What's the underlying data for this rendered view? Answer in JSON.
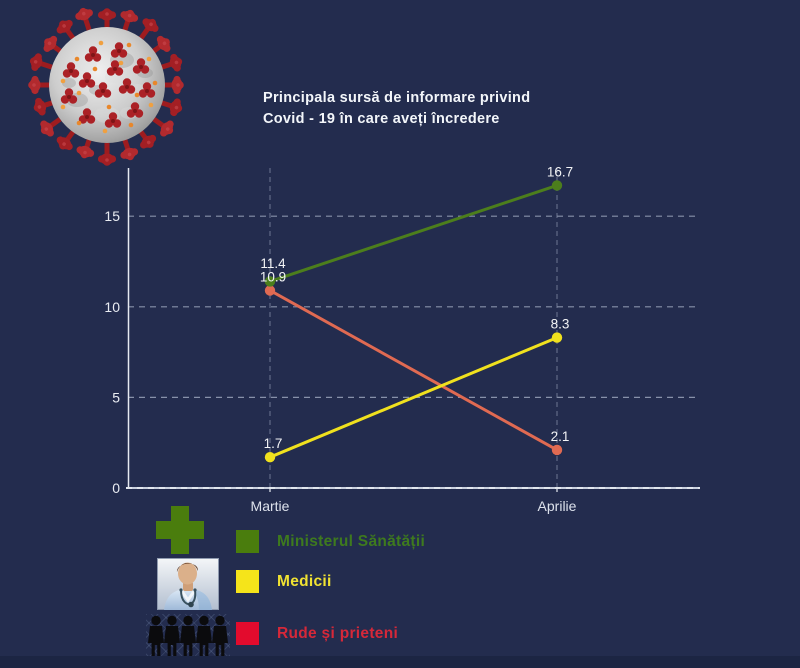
{
  "page": {
    "background_color": "#232c4e",
    "bottom_bar_color": "#1c2543"
  },
  "header": {
    "title_line1": "Principala sursă de informare privind",
    "title_line2": "Covid - 19 în care aveți încredere",
    "title_color": "#f3f6fa"
  },
  "chart_data": {
    "type": "line",
    "title": "Principala sursă de informare privind Covid - 19 în care aveți încredere",
    "categories": [
      "Martie",
      "Aprilie"
    ],
    "series": [
      {
        "name": "Ministerul Sănătății",
        "color": "#4c7e1c",
        "values": [
          11.4,
          16.7
        ]
      },
      {
        "name": "Medicii",
        "color": "#f0e11e",
        "values": [
          1.7,
          8.3
        ]
      },
      {
        "name": "Rude și prieteni",
        "color": "#e06a52",
        "values": [
          10.9,
          2.1
        ]
      }
    ],
    "yticks": [
      0,
      5,
      10,
      15
    ],
    "ylim": [
      0,
      17.5
    ],
    "grid": "dashed",
    "axis_color": "#e6eaf2",
    "gridline_color": "#9aa3bb",
    "point_label_color": "#f3f4f6",
    "tick_label_color": "#e9ecf2",
    "legend_position": "bottom-left"
  },
  "legend": {
    "items": [
      {
        "icon": "medical-cross-icon",
        "swatch_color": "#4a7d0d",
        "label": "Ministerul Sănătății",
        "label_color": "#3e7a1e"
      },
      {
        "icon": "doctor-icon",
        "swatch_color": "#f5e41a",
        "label": "Medicii",
        "label_color": "#f0e232"
      },
      {
        "icon": "people-icon",
        "swatch_color": "#e30b2d",
        "label": "Rude și prieteni",
        "label_color": "#d62839"
      }
    ]
  }
}
